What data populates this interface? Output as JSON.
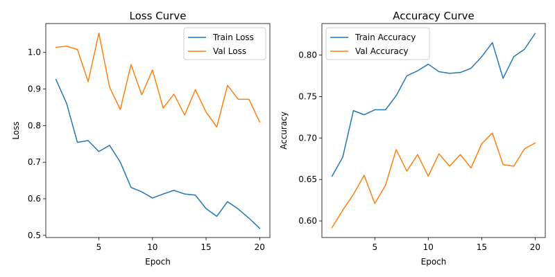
{
  "chart_data": [
    {
      "type": "line",
      "title": "Loss Curve",
      "xlabel": "Epoch",
      "ylabel": "Loss",
      "x": [
        1,
        2,
        3,
        4,
        5,
        6,
        7,
        8,
        9,
        10,
        11,
        12,
        13,
        14,
        15,
        16,
        17,
        18,
        19,
        20
      ],
      "xlim": [
        0.05,
        20.95
      ],
      "ylim": [
        0.494,
        1.079
      ],
      "xticks": [
        5,
        10,
        15,
        20
      ],
      "yticks": [
        0.5,
        0.6,
        0.7,
        0.8,
        0.9,
        1.0
      ],
      "ytick_labels": [
        "0.5",
        "0.6",
        "0.7",
        "0.8",
        "0.9",
        "1.0"
      ],
      "grid": false,
      "legend_position": "top-right",
      "series": [
        {
          "name": "Train Loss",
          "color": "#1f77b4",
          "values": [
            0.926,
            0.86,
            0.754,
            0.759,
            0.729,
            0.746,
            0.7,
            0.631,
            0.619,
            0.602,
            0.613,
            0.623,
            0.613,
            0.61,
            0.573,
            0.552,
            0.592,
            0.572,
            0.547,
            0.519
          ]
        },
        {
          "name": "Val Loss",
          "color": "#ff7f0e",
          "values": [
            1.014,
            1.017,
            1.008,
            0.92,
            1.053,
            0.905,
            0.844,
            0.967,
            0.884,
            0.952,
            0.848,
            0.886,
            0.829,
            0.898,
            0.837,
            0.796,
            0.91,
            0.872,
            0.872,
            0.81
          ]
        }
      ]
    },
    {
      "type": "line",
      "title": "Accuracy Curve",
      "xlabel": "Epoch",
      "ylabel": "Accuracy",
      "x": [
        1,
        2,
        3,
        4,
        5,
        6,
        7,
        8,
        9,
        10,
        11,
        12,
        13,
        14,
        15,
        16,
        17,
        18,
        19,
        20
      ],
      "xlim": [
        0.05,
        20.95
      ],
      "ylim": [
        0.58,
        0.838
      ],
      "xticks": [
        5,
        10,
        15,
        20
      ],
      "yticks": [
        0.6,
        0.65,
        0.7,
        0.75,
        0.8
      ],
      "ytick_labels": [
        "0.60",
        "0.65",
        "0.70",
        "0.75",
        "0.80"
      ],
      "grid": false,
      "legend_position": "top-left",
      "series": [
        {
          "name": "Train Accuracy",
          "color": "#1f77b4",
          "values": [
            0.654,
            0.677,
            0.733,
            0.728,
            0.734,
            0.734,
            0.751,
            0.775,
            0.781,
            0.789,
            0.78,
            0.778,
            0.779,
            0.784,
            0.798,
            0.815,
            0.772,
            0.798,
            0.807,
            0.826
          ]
        },
        {
          "name": "Val Accuracy",
          "color": "#ff7f0e",
          "values": [
            0.592,
            0.613,
            0.632,
            0.655,
            0.621,
            0.643,
            0.686,
            0.66,
            0.68,
            0.654,
            0.681,
            0.666,
            0.68,
            0.664,
            0.693,
            0.706,
            0.668,
            0.666,
            0.687,
            0.694
          ]
        }
      ]
    }
  ]
}
